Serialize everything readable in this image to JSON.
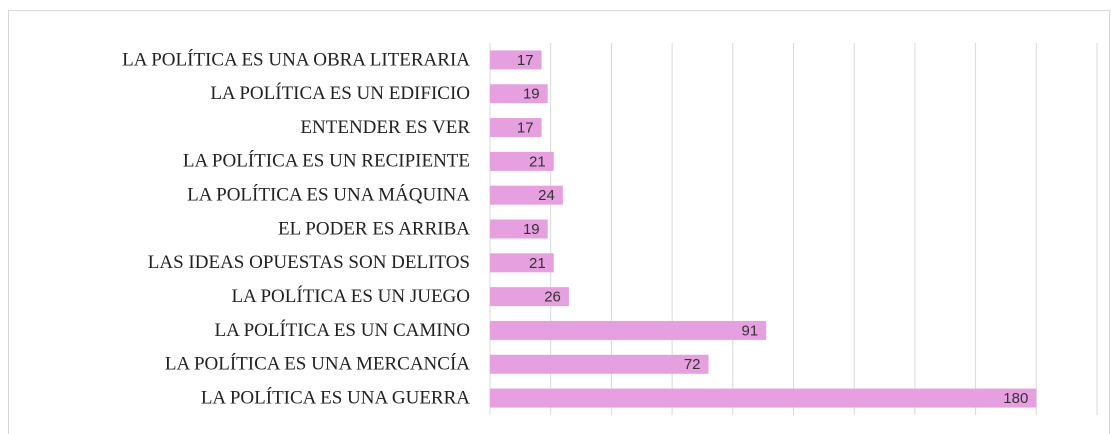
{
  "chart_data": {
    "type": "barh",
    "categories": [
      "LA POLÍTICA ES UNA OBRA LITERARIA",
      "LA POLÍTICA ES UN EDIFICIO",
      "ENTENDER ES VER",
      "LA POLÍTICA ES UN RECIPIENTE",
      "LA POLÍTICA ES UNA MÁQUINA",
      "EL PODER ES ARRIBA",
      "LAS IDEAS OPUESTAS SON DELITOS",
      "LA POLÍTICA ES UN JUEGO",
      "LA POLÍTICA ES UN CAMINO",
      "LA POLÍTICA ES UNA MERCANCÍA",
      "LA POLÍTICA ES UNA GUERRA"
    ],
    "values": [
      17,
      19,
      17,
      21,
      24,
      19,
      21,
      26,
      91,
      72,
      180
    ],
    "color": "#e6a0e0",
    "xlim": [
      0,
      200
    ],
    "xticks": [
      0,
      20,
      40,
      60,
      80,
      100,
      120,
      140,
      160,
      180,
      200
    ],
    "grid": true
  }
}
